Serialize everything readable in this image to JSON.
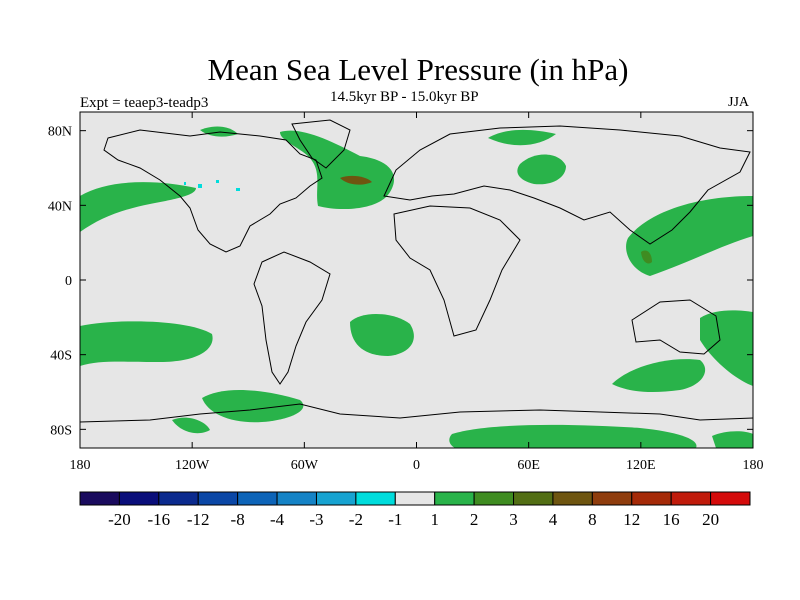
{
  "title": "Mean Sea Level Pressure (in hPa)",
  "subtitle": "14.5kyr BP - 15.0kyr BP",
  "left_label": "Expt = teaep3-teadp3",
  "right_label": "JJA",
  "map": {
    "projection": "cylindrical equidistant",
    "background_color": "#e6e6e6",
    "lon_range": [
      -180,
      180
    ],
    "lat_range": [
      -90,
      90
    ],
    "lat_ticks": [
      {
        "value": 80,
        "label": "80N"
      },
      {
        "value": 40,
        "label": "40N"
      },
      {
        "value": 0,
        "label": "0"
      },
      {
        "value": -40,
        "label": "40S"
      },
      {
        "value": -80,
        "label": "80S"
      }
    ],
    "lon_ticks": [
      {
        "value": -180,
        "label": "180"
      },
      {
        "value": -120,
        "label": "120W"
      },
      {
        "value": -60,
        "label": "60W"
      },
      {
        "value": 0,
        "label": "0"
      },
      {
        "value": 60,
        "label": "60E"
      },
      {
        "value": 120,
        "label": "120E"
      },
      {
        "value": 180,
        "label": "180"
      }
    ]
  },
  "colorbar": {
    "colors": [
      "#1a0b5e",
      "#0a0e7a",
      "#0b2a8e",
      "#0b47a6",
      "#0d64b8",
      "#1583c6",
      "#17a3d1",
      "#00dcdc",
      "#e6e6e6",
      "#29b34a",
      "#3f8c21",
      "#526e14",
      "#6e5510",
      "#8f3d0d",
      "#a52a08",
      "#c01b0b",
      "#d40b0b"
    ],
    "labels": [
      "-20",
      "-16",
      "-12",
      "-8",
      "-4",
      "-3",
      "-2",
      "-1",
      "1",
      "2",
      "3",
      "4",
      "8",
      "12",
      "16",
      "20"
    ]
  }
}
